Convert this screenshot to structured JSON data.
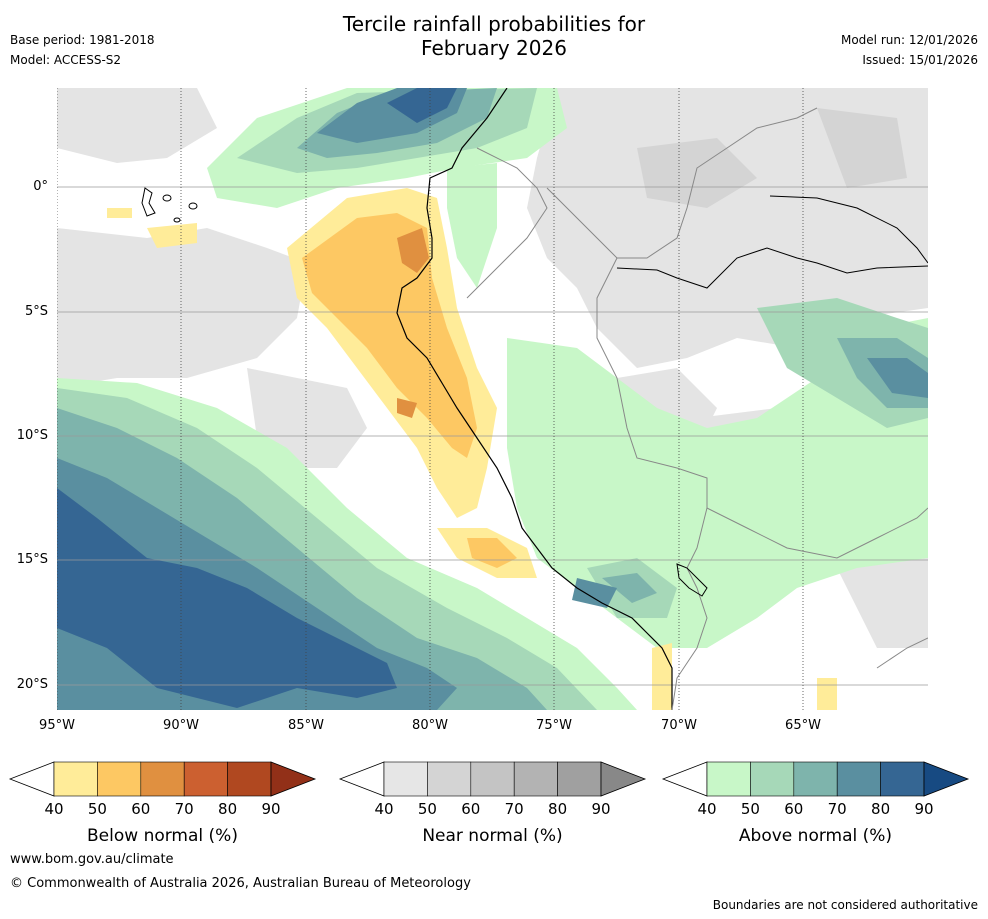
{
  "title_line1": "Tercile rainfall probabilities for",
  "title_line2": "February 2026",
  "base_period": "Base period: 1981-2018",
  "model": "Model: ACCESS-S2",
  "model_run": "Model run: 12/01/2026",
  "issued": "Issued: 15/01/2026",
  "lat_labels": [
    "0°",
    "5°S",
    "10°S",
    "15°S",
    "20°S"
  ],
  "lon_labels": [
    "95°W",
    "90°W",
    "85°W",
    "80°W",
    "75°W",
    "70°W",
    "65°W"
  ],
  "colorbars": [
    {
      "title": "Below normal (%)",
      "ticks": [
        "40",
        "50",
        "60",
        "70",
        "80",
        "90"
      ],
      "colors": [
        "#ffffff",
        "#ffec99",
        "#fdc863",
        "#e09040",
        "#cc6030",
        "#b04820",
        "#923018"
      ]
    },
    {
      "title": "Near normal (%)",
      "ticks": [
        "40",
        "50",
        "60",
        "70",
        "80",
        "90"
      ],
      "colors": [
        "#ffffff",
        "#e6e6e6",
        "#d4d4d4",
        "#c4c4c4",
        "#b3b3b3",
        "#a0a0a0",
        "#888888"
      ]
    },
    {
      "title": "Above normal (%)",
      "ticks": [
        "40",
        "50",
        "60",
        "70",
        "80",
        "90"
      ],
      "colors": [
        "#ffffff",
        "#c8f7c8",
        "#a6d8b8",
        "#7eb4ac",
        "#5a8fa0",
        "#356693",
        "#174a82"
      ]
    }
  ],
  "website": "www.bom.gov.au/climate",
  "copyright": "© Commonwealth of Australia 2026, Australian Bureau of Meteorology",
  "disclaimer": "Boundaries are not considered authoritative"
}
